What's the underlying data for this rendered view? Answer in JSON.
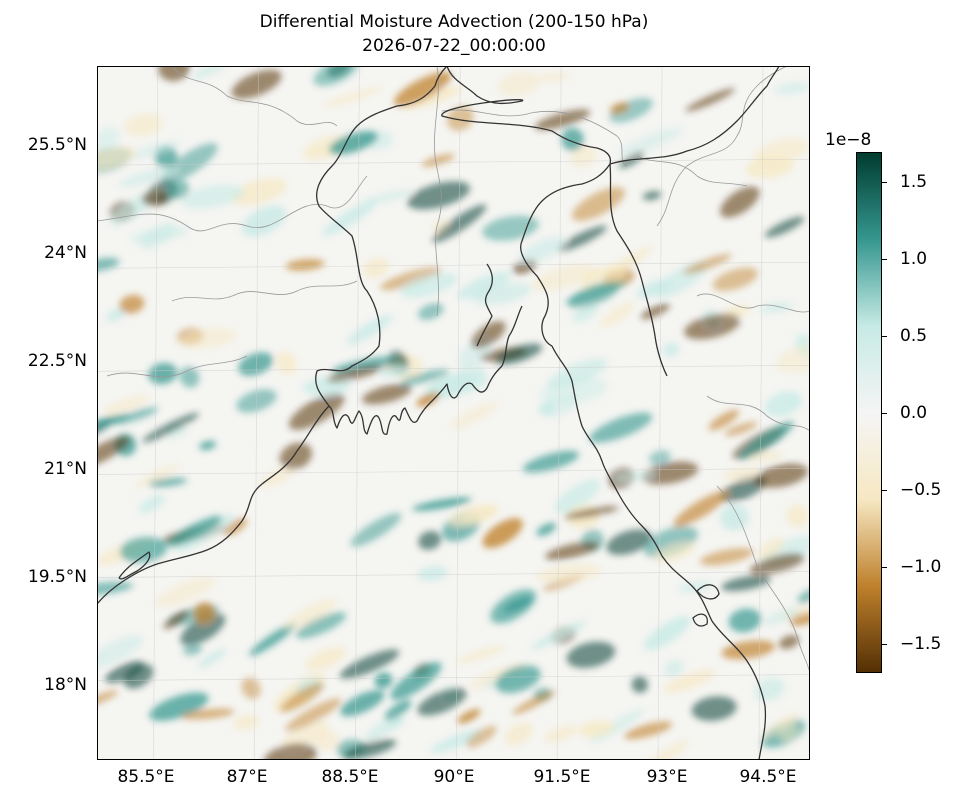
{
  "map": {
    "title_line1": "Differential Moisture Advection (200-150 hPa)",
    "title_line2": "2026-07-22_00:00:00",
    "lon_range": [
      84.6,
      95.2
    ],
    "lat_range": [
      16.8,
      26.9
    ],
    "lat_ticks": [
      {
        "value": 18,
        "label": "18°N"
      },
      {
        "value": 19.5,
        "label": "19.5°N"
      },
      {
        "value": 21,
        "label": "21°N"
      },
      {
        "value": 22.5,
        "label": "22.5°N"
      },
      {
        "value": 24,
        "label": "24°N"
      },
      {
        "value": 25.5,
        "label": "25.5°N"
      }
    ],
    "lon_ticks": [
      {
        "value": 85.5,
        "label": "85.5°E"
      },
      {
        "value": 87,
        "label": "87°E"
      },
      {
        "value": 88.5,
        "label": "88.5°E"
      },
      {
        "value": 90,
        "label": "90°E"
      },
      {
        "value": 91.5,
        "label": "91.5°E"
      },
      {
        "value": 93,
        "label": "93°E"
      },
      {
        "value": 94.5,
        "label": "94.5°E"
      }
    ],
    "gridlines": true,
    "colormap": "BrBG",
    "colors": {
      "brown_dark": "#543005",
      "brown": "#bf812d",
      "tan": "#f6e8c3",
      "neutral": "#f5f5f5",
      "teal_light": "#c7eae5",
      "teal": "#35978f",
      "teal_dark": "#003c30",
      "coastline": "#333333",
      "borders": "#999999"
    }
  },
  "colorbar": {
    "exponent_label": "1e−8",
    "range": [
      -1.7,
      1.7
    ],
    "ticks": [
      {
        "value": 1.5,
        "label": "1.5"
      },
      {
        "value": 1.0,
        "label": "1.0"
      },
      {
        "value": 0.5,
        "label": "0.5"
      },
      {
        "value": 0.0,
        "label": "0.0"
      },
      {
        "value": -0.5,
        "label": "−0.5"
      },
      {
        "value": -1.0,
        "label": "−1.0"
      },
      {
        "value": -1.5,
        "label": "−1.5"
      }
    ]
  }
}
